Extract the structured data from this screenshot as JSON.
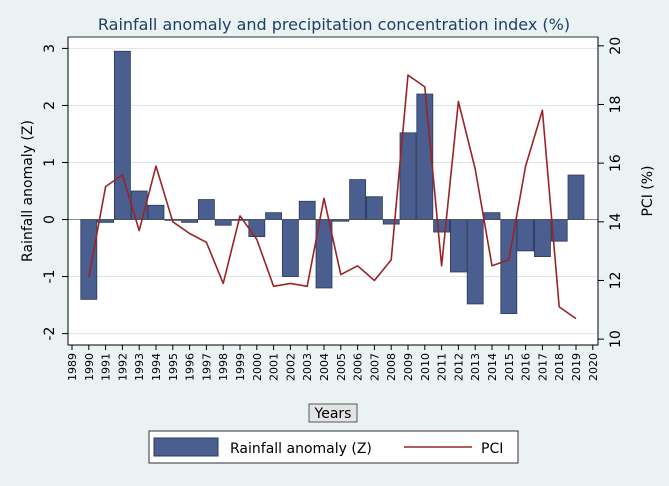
{
  "chart_data": {
    "type": "bar+line",
    "title": "Rainfall anomaly and precipitation concentration index (%)",
    "xlabel": "Years",
    "ylabel": "Rainfall anomaly (Z)",
    "y2label": "PCI (%)",
    "ylim": [
      -2.2,
      3.2
    ],
    "y2lim": [
      9.8,
      20.3
    ],
    "yticks": [
      "-2",
      "-1",
      "0",
      "1",
      "2",
      "3"
    ],
    "y2ticks": [
      "10",
      "12",
      "14",
      "16",
      "18",
      "20"
    ],
    "x_ticks": [
      "1989",
      "1990",
      "1991",
      "1992",
      "1993",
      "1994",
      "1995",
      "1996",
      "1997",
      "1998",
      "1999",
      "2000",
      "2001",
      "2002",
      "2003",
      "2004",
      "2005",
      "2006",
      "2007",
      "2008",
      "2009",
      "2010",
      "2011",
      "2012",
      "2013",
      "2014",
      "2015",
      "2016",
      "2017",
      "2018",
      "2019",
      "2020"
    ],
    "years": [
      1990,
      1991,
      1992,
      1993,
      1994,
      1995,
      1996,
      1997,
      1998,
      1999,
      2000,
      2001,
      2002,
      2003,
      2004,
      2005,
      2006,
      2007,
      2008,
      2009,
      2010,
      2011,
      2012,
      2013,
      2014,
      2015,
      2016,
      2017,
      2018,
      2019
    ],
    "series": [
      {
        "name": "Rainfall anomaly (Z)",
        "type": "bar",
        "axis": "left",
        "color": "#4a5e8f",
        "values": [
          -1.4,
          -0.05,
          2.95,
          0.5,
          0.25,
          0.0,
          -0.05,
          0.35,
          -0.1,
          0.0,
          -0.3,
          0.12,
          -1.0,
          0.32,
          -1.2,
          -0.03,
          0.7,
          0.4,
          -0.08,
          1.52,
          2.2,
          -0.22,
          -0.92,
          -1.48,
          0.12,
          -1.65,
          -0.55,
          -0.65,
          -0.38,
          0.78
        ]
      },
      {
        "name": "PCI",
        "type": "line",
        "axis": "right",
        "color": "#9b2424",
        "values": [
          12.1,
          15.2,
          15.6,
          13.7,
          15.9,
          14.0,
          13.6,
          13.3,
          11.9,
          14.2,
          13.4,
          11.8,
          11.9,
          11.8,
          14.8,
          12.2,
          12.5,
          12.0,
          12.7,
          19.0,
          18.6,
          12.5,
          18.1,
          15.8,
          12.5,
          12.7,
          15.9,
          17.8,
          11.1,
          10.7
        ]
      }
    ],
    "legend": {
      "position": "bottom",
      "items": [
        "Rainfall anomaly (Z)",
        "PCI"
      ]
    }
  },
  "colors": {
    "page_bg": "#eaf2f3",
    "plot_bg": "#ffffff",
    "bar": "#4a5e8f",
    "bar_stroke": "#2b3a5c",
    "line": "#9b2424",
    "title": "#1e3f66",
    "grid": "#dde5e7"
  }
}
